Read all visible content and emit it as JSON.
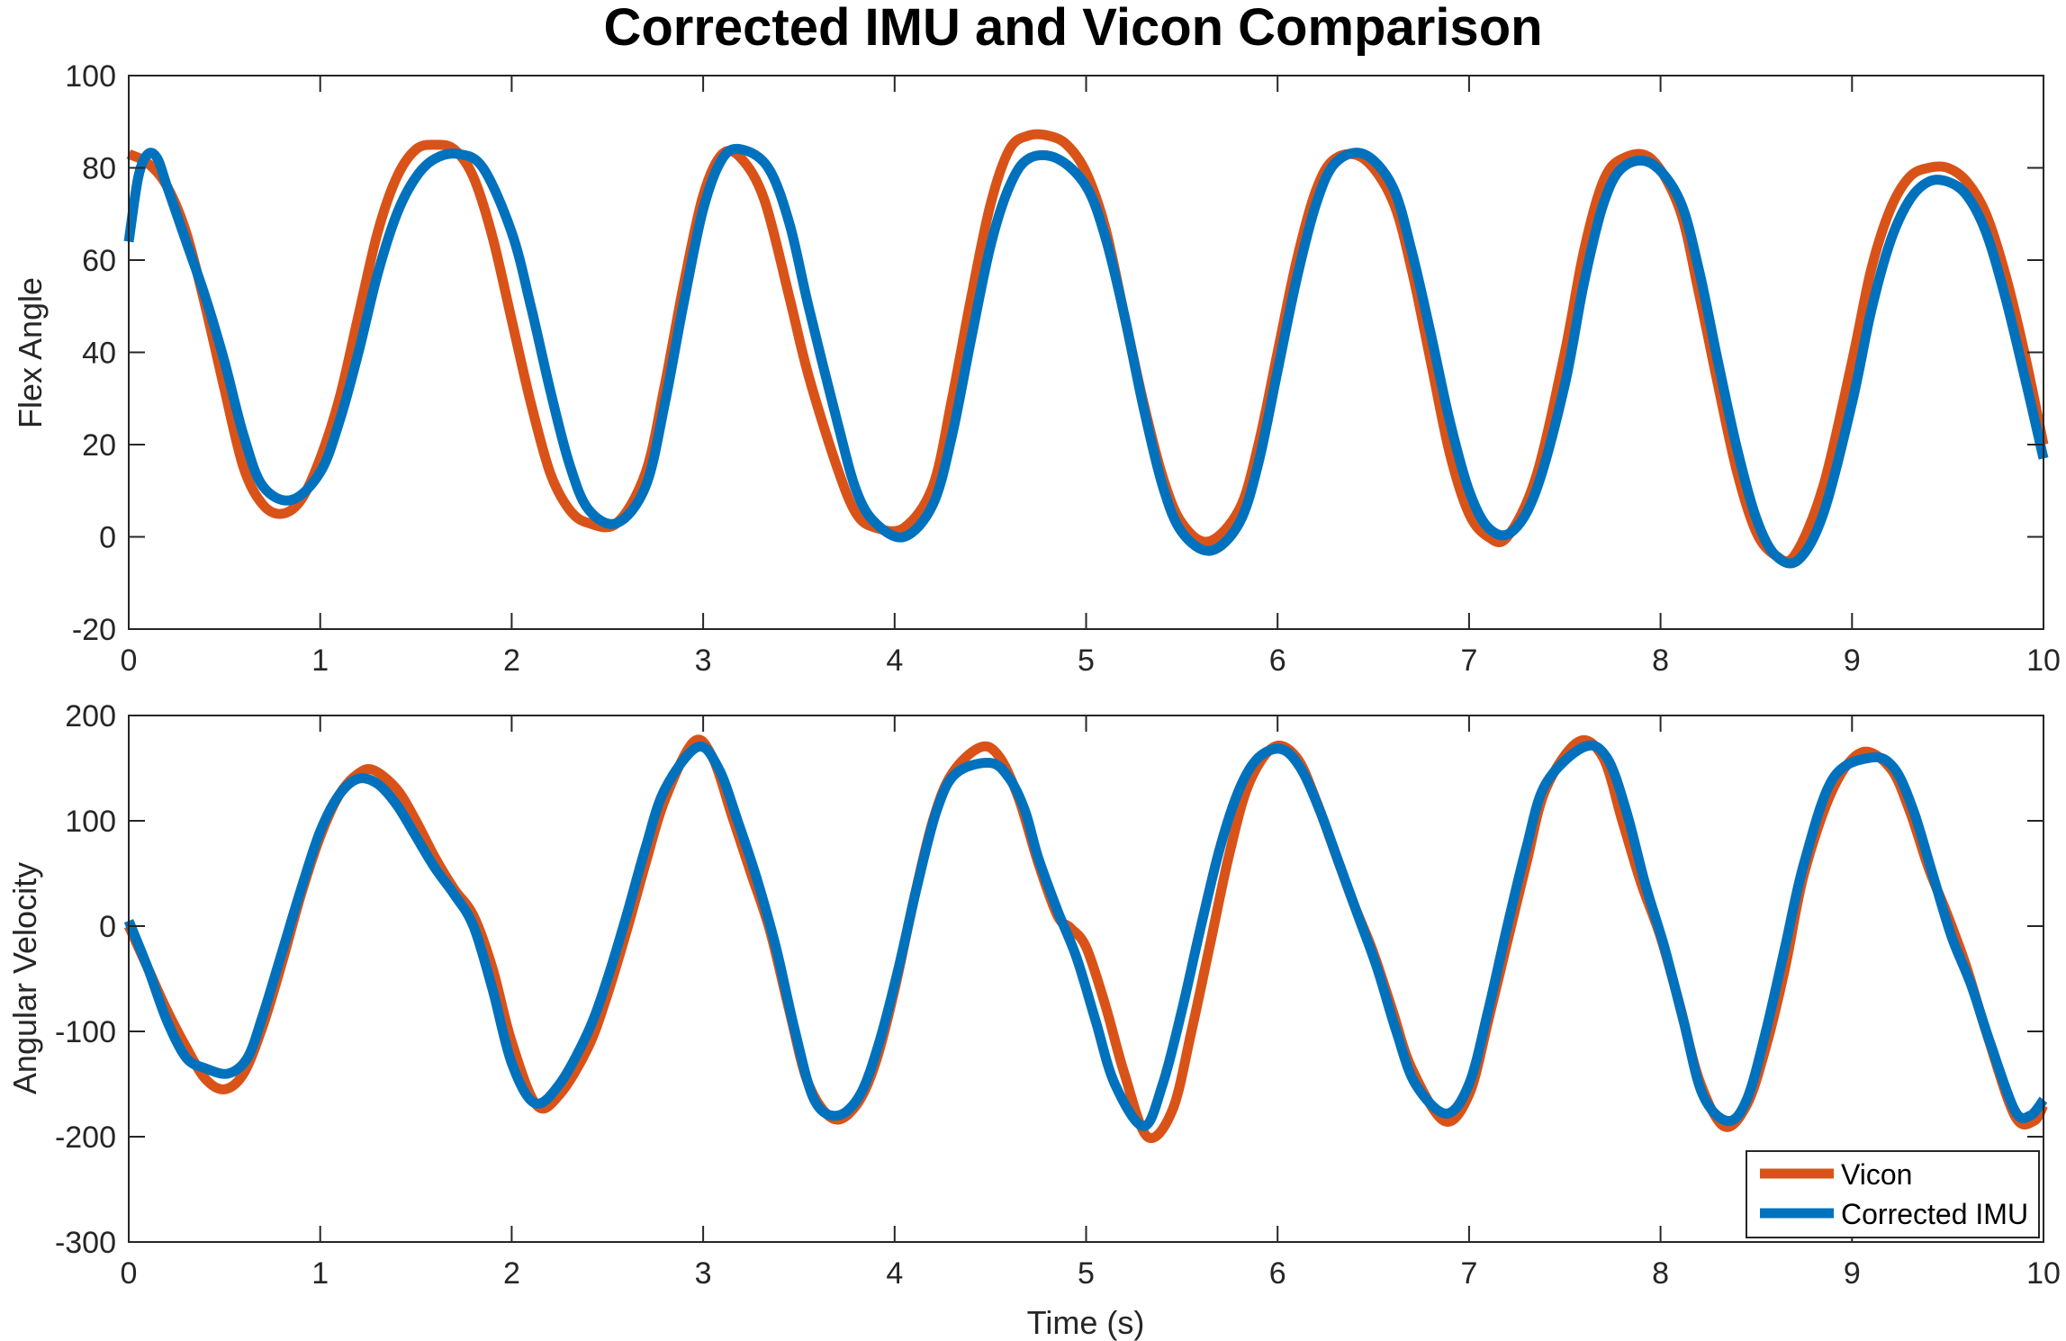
{
  "figure": {
    "title": "Corrected IMU and Vicon Comparison"
  },
  "chart_data": [
    {
      "type": "line",
      "title": "Corrected IMU and Vicon Comparison",
      "xlabel": "",
      "ylabel": "Flex Angle",
      "xlim": [
        0,
        10
      ],
      "ylim": [
        -20,
        100
      ],
      "xticks": [
        "0",
        "1",
        "2",
        "3",
        "4",
        "5",
        "6",
        "7",
        "8",
        "9",
        "10"
      ],
      "yticks": [
        "-20",
        "0",
        "20",
        "40",
        "60",
        "80",
        "100"
      ],
      "grid": false,
      "series": [
        {
          "name": "Vicon",
          "color": "#D95319",
          "x": [
            0,
            0.1,
            0.2,
            0.3,
            0.4,
            0.5,
            0.6,
            0.7,
            0.8,
            0.9,
            1.0,
            1.1,
            1.2,
            1.3,
            1.4,
            1.5,
            1.6,
            1.7,
            1.8,
            1.9,
            2.0,
            2.1,
            2.2,
            2.3,
            2.4,
            2.55,
            2.7,
            2.8,
            2.9,
            3.0,
            3.1,
            3.2,
            3.32,
            3.45,
            3.55,
            3.7,
            3.8,
            3.9,
            4.05,
            4.2,
            4.3,
            4.4,
            4.5,
            4.6,
            4.7,
            4.8,
            4.9,
            5.0,
            5.1,
            5.2,
            5.3,
            5.4,
            5.5,
            5.64,
            5.8,
            5.9,
            6.0,
            6.1,
            6.2,
            6.3,
            6.45,
            6.6,
            6.7,
            6.8,
            6.9,
            7.0,
            7.1,
            7.2,
            7.35,
            7.5,
            7.6,
            7.7,
            7.8,
            7.95,
            8.1,
            8.2,
            8.3,
            8.4,
            8.5,
            8.6,
            8.7,
            8.85,
            9.0,
            9.1,
            9.2,
            9.3,
            9.4,
            9.5,
            9.6,
            9.7,
            9.8,
            9.9,
            10.0
          ],
          "y": [
            83,
            81,
            76,
            66,
            50,
            32,
            15,
            7,
            5,
            8,
            17,
            30,
            48,
            66,
            78,
            84,
            85,
            84,
            78,
            65,
            47,
            29,
            14,
            6,
            3,
            3,
            14,
            33,
            55,
            74,
            83,
            82,
            73,
            52,
            35,
            15,
            5,
            2,
            2,
            11,
            30,
            52,
            72,
            84,
            87,
            87,
            85,
            79,
            67,
            48,
            29,
            13,
            3,
            -1,
            6,
            20,
            40,
            60,
            75,
            82,
            82,
            73,
            58,
            38,
            18,
            5,
            0,
            0,
            13,
            40,
            62,
            77,
            82,
            82,
            71,
            53,
            33,
            14,
            1,
            -4,
            -4,
            11,
            38,
            58,
            71,
            78,
            80,
            80,
            77,
            70,
            57,
            40,
            20
          ]
        },
        {
          "name": "Corrected IMU",
          "color": "#0072BD",
          "x": [
            0,
            0.05,
            0.1,
            0.15,
            0.2,
            0.3,
            0.4,
            0.5,
            0.6,
            0.7,
            0.85,
            1.0,
            1.1,
            1.2,
            1.3,
            1.4,
            1.5,
            1.6,
            1.72,
            1.85,
            2.0,
            2.1,
            2.2,
            2.3,
            2.4,
            2.55,
            2.7,
            2.8,
            2.9,
            3.0,
            3.1,
            3.2,
            3.34,
            3.45,
            3.55,
            3.7,
            3.8,
            3.9,
            4.05,
            4.2,
            4.3,
            4.4,
            4.5,
            4.6,
            4.7,
            4.85,
            5.0,
            5.1,
            5.2,
            5.3,
            5.4,
            5.5,
            5.65,
            5.8,
            5.9,
            6.0,
            6.1,
            6.2,
            6.3,
            6.45,
            6.6,
            6.7,
            6.8,
            6.9,
            7.0,
            7.1,
            7.22,
            7.35,
            7.5,
            7.6,
            7.7,
            7.8,
            7.95,
            8.1,
            8.2,
            8.3,
            8.4,
            8.5,
            8.6,
            8.72,
            8.85,
            9.0,
            9.1,
            9.2,
            9.3,
            9.4,
            9.5,
            9.6,
            9.7,
            9.8,
            9.9,
            10.0
          ],
          "y": [
            64,
            78,
            83,
            82,
            76,
            64,
            52,
            38,
            22,
            11,
            8,
            14,
            25,
            40,
            57,
            70,
            78,
            82,
            83,
            80,
            66,
            50,
            32,
            16,
            6,
            3,
            11,
            29,
            51,
            71,
            82,
            84,
            80,
            68,
            50,
            25,
            10,
            3,
            0,
            7,
            22,
            43,
            63,
            76,
            82,
            82,
            76,
            65,
            48,
            28,
            11,
            1,
            -3,
            3,
            16,
            36,
            56,
            72,
            81,
            83,
            76,
            62,
            44,
            25,
            10,
            2,
            1,
            10,
            33,
            55,
            72,
            80,
            81,
            73,
            58,
            38,
            19,
            4,
            -4,
            -5,
            5,
            29,
            49,
            64,
            73,
            77,
            77,
            74,
            66,
            52,
            35,
            17
          ]
        }
      ]
    },
    {
      "type": "line",
      "title": "",
      "xlabel": "Time (s)",
      "ylabel": "Angular Velocity",
      "xlim": [
        0,
        10
      ],
      "ylim": [
        -300,
        200
      ],
      "xticks": [
        "0",
        "1",
        "2",
        "3",
        "4",
        "5",
        "6",
        "7",
        "8",
        "9",
        "10"
      ],
      "yticks": [
        "-300",
        "-200",
        "-100",
        "0",
        "100",
        "200"
      ],
      "grid": false,
      "legend": {
        "position": "bottom-right",
        "entries": [
          "Vicon",
          "Corrected IMU"
        ]
      },
      "series": [
        {
          "name": "Vicon",
          "color": "#D95319",
          "x": [
            0,
            0.1,
            0.2,
            0.3,
            0.4,
            0.5,
            0.6,
            0.7,
            0.8,
            0.9,
            1.0,
            1.1,
            1.2,
            1.28,
            1.4,
            1.5,
            1.6,
            1.7,
            1.8,
            1.9,
            2.0,
            2.13,
            2.25,
            2.4,
            2.5,
            2.6,
            2.7,
            2.8,
            2.95,
            3.05,
            3.15,
            3.25,
            3.35,
            3.45,
            3.55,
            3.68,
            3.8,
            3.9,
            4.0,
            4.1,
            4.2,
            4.3,
            4.45,
            4.55,
            4.65,
            4.75,
            4.85,
            4.92,
            5.0,
            5.1,
            5.2,
            5.32,
            5.45,
            5.55,
            5.65,
            5.75,
            5.85,
            5.98,
            6.1,
            6.2,
            6.3,
            6.4,
            6.5,
            6.6,
            6.7,
            6.87,
            7.0,
            7.1,
            7.2,
            7.3,
            7.4,
            7.57,
            7.7,
            7.8,
            7.9,
            8.0,
            8.1,
            8.2,
            8.33,
            8.45,
            8.55,
            8.65,
            8.75,
            8.9,
            9.05,
            9.2,
            9.3,
            9.4,
            9.5,
            9.6,
            9.7,
            9.85,
            9.95,
            10.0
          ],
          "y": [
            0,
            -40,
            -80,
            -115,
            -145,
            -155,
            -140,
            -95,
            -35,
            30,
            85,
            125,
            145,
            148,
            130,
            100,
            65,
            35,
            10,
            -40,
            -110,
            -170,
            -160,
            -115,
            -65,
            -5,
            60,
            120,
            175,
            160,
            105,
            50,
            -5,
            -80,
            -150,
            -183,
            -170,
            -130,
            -60,
            25,
            100,
            145,
            170,
            160,
            120,
            60,
            10,
            -2,
            -20,
            -75,
            -140,
            -200,
            -175,
            -100,
            -15,
            70,
            135,
            170,
            160,
            120,
            70,
            20,
            -25,
            -80,
            -135,
            -185,
            -160,
            -90,
            -15,
            60,
            130,
            175,
            160,
            100,
            40,
            -10,
            -75,
            -145,
            -190,
            -170,
            -115,
            -40,
            50,
            130,
            165,
            150,
            110,
            55,
            10,
            -40,
            -100,
            -180,
            -185,
            -170
          ]
        },
        {
          "name": "Corrected IMU",
          "color": "#0072BD",
          "x": [
            0,
            0.1,
            0.2,
            0.3,
            0.4,
            0.52,
            0.62,
            0.7,
            0.8,
            0.9,
            1.0,
            1.1,
            1.2,
            1.3,
            1.4,
            1.5,
            1.6,
            1.7,
            1.8,
            1.9,
            2.0,
            2.12,
            2.25,
            2.4,
            2.5,
            2.6,
            2.7,
            2.8,
            2.97,
            3.08,
            3.18,
            3.28,
            3.38,
            3.48,
            3.58,
            3.7,
            3.82,
            3.92,
            4.02,
            4.12,
            4.22,
            4.32,
            4.5,
            4.6,
            4.68,
            4.75,
            4.85,
            4.95,
            5.05,
            5.15,
            5.3,
            5.4,
            5.5,
            5.6,
            5.7,
            5.8,
            5.9,
            6.02,
            6.12,
            6.22,
            6.32,
            6.42,
            6.52,
            6.62,
            6.72,
            6.88,
            7.0,
            7.1,
            7.2,
            7.3,
            7.4,
            7.6,
            7.72,
            7.82,
            7.92,
            8.02,
            8.12,
            8.22,
            8.35,
            8.45,
            8.55,
            8.65,
            8.75,
            8.9,
            9.1,
            9.22,
            9.32,
            9.42,
            9.52,
            9.62,
            9.72,
            9.85,
            9.93,
            10.0
          ],
          "y": [
            5,
            -40,
            -90,
            -125,
            -135,
            -140,
            -125,
            -85,
            -25,
            35,
            90,
            125,
            140,
            135,
            115,
            85,
            55,
            30,
            0,
            -60,
            -130,
            -168,
            -150,
            -100,
            -50,
            10,
            75,
            130,
            170,
            150,
            100,
            45,
            -20,
            -100,
            -165,
            -180,
            -160,
            -110,
            -40,
            40,
            110,
            145,
            155,
            140,
            110,
            65,
            15,
            -30,
            -90,
            -150,
            -190,
            -150,
            -80,
            0,
            75,
            130,
            160,
            168,
            150,
            110,
            60,
            10,
            -40,
            -100,
            -150,
            -178,
            -150,
            -80,
            0,
            75,
            135,
            170,
            160,
            110,
            40,
            -20,
            -90,
            -160,
            -185,
            -165,
            -100,
            -20,
            60,
            140,
            160,
            150,
            110,
            50,
            -10,
            -55,
            -110,
            -175,
            -180,
            -165
          ]
        }
      ]
    }
  ]
}
